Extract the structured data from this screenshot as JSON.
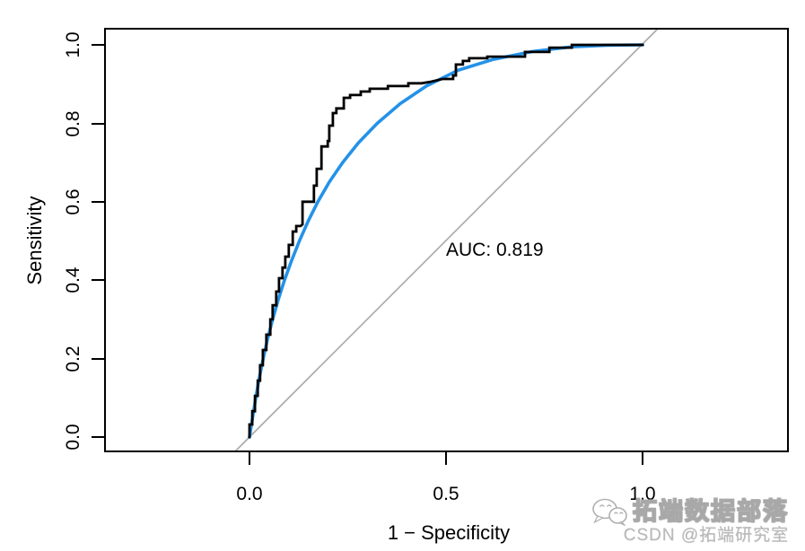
{
  "chart": {
    "ylabel": "Sensitivity",
    "xlabel": "1 − Specificity",
    "auc_text": "AUC: 0.819",
    "y_tick_labels": [
      "0.0",
      "0.2",
      "0.4",
      "0.6",
      "0.8",
      "1.0"
    ],
    "x_tick_labels": [
      "0.0",
      "0.5",
      "1.0"
    ]
  },
  "chart_data": {
    "type": "line",
    "title": "",
    "xlabel": "1 − Specificity",
    "ylabel": "Sensitivity",
    "xlim": [
      0,
      1
    ],
    "ylim": [
      0,
      1
    ],
    "x_ticks": [
      0,
      0.5,
      1
    ],
    "y_ticks": [
      0,
      0.2,
      0.4,
      0.6,
      0.8,
      1
    ],
    "grid": false,
    "legend": "none",
    "annotations": [
      {
        "text": "AUC: 0.819",
        "x": 0.5,
        "y": 0.48
      }
    ],
    "series": [
      {
        "name": "empirical ROC (stepped)",
        "style": "step",
        "color": "#000000",
        "line_width": 2.8,
        "points": [
          [
            0,
            0
          ],
          [
            0,
            0.032
          ],
          [
            0.007,
            0.032
          ],
          [
            0.007,
            0.066
          ],
          [
            0.014,
            0.066
          ],
          [
            0.014,
            0.105
          ],
          [
            0.021,
            0.105
          ],
          [
            0.021,
            0.144
          ],
          [
            0.027,
            0.144
          ],
          [
            0.027,
            0.183
          ],
          [
            0.034,
            0.183
          ],
          [
            0.034,
            0.222
          ],
          [
            0.043,
            0.222
          ],
          [
            0.043,
            0.261
          ],
          [
            0.053,
            0.261
          ],
          [
            0.053,
            0.3
          ],
          [
            0.059,
            0.3
          ],
          [
            0.059,
            0.336
          ],
          [
            0.068,
            0.336
          ],
          [
            0.068,
            0.371
          ],
          [
            0.075,
            0.371
          ],
          [
            0.075,
            0.405
          ],
          [
            0.084,
            0.405
          ],
          [
            0.084,
            0.432
          ],
          [
            0.091,
            0.432
          ],
          [
            0.091,
            0.46
          ],
          [
            0.1,
            0.46
          ],
          [
            0.1,
            0.49
          ],
          [
            0.11,
            0.49
          ],
          [
            0.11,
            0.524
          ],
          [
            0.119,
            0.524
          ],
          [
            0.119,
            0.538
          ],
          [
            0.13,
            0.538
          ],
          [
            0.135,
            0.542
          ],
          [
            0.135,
            0.6
          ],
          [
            0.164,
            0.6
          ],
          [
            0.164,
            0.641
          ],
          [
            0.171,
            0.641
          ],
          [
            0.171,
            0.684
          ],
          [
            0.183,
            0.684
          ],
          [
            0.183,
            0.741
          ],
          [
            0.199,
            0.741
          ],
          [
            0.199,
            0.755
          ],
          [
            0.203,
            0.755
          ],
          [
            0.203,
            0.794
          ],
          [
            0.212,
            0.794
          ],
          [
            0.212,
            0.826
          ],
          [
            0.221,
            0.826
          ],
          [
            0.221,
            0.838
          ],
          [
            0.24,
            0.838
          ],
          [
            0.24,
            0.865
          ],
          [
            0.256,
            0.865
          ],
          [
            0.256,
            0.872
          ],
          [
            0.283,
            0.872
          ],
          [
            0.283,
            0.881
          ],
          [
            0.306,
            0.881
          ],
          [
            0.306,
            0.888
          ],
          [
            0.352,
            0.888
          ],
          [
            0.352,
            0.895
          ],
          [
            0.404,
            0.895
          ],
          [
            0.404,
            0.902
          ],
          [
            0.438,
            0.902
          ],
          [
            0.461,
            0.906
          ],
          [
            0.491,
            0.913
          ],
          [
            0.518,
            0.913
          ],
          [
            0.518,
            0.922
          ],
          [
            0.525,
            0.922
          ],
          [
            0.525,
            0.95
          ],
          [
            0.543,
            0.95
          ],
          [
            0.543,
            0.959
          ],
          [
            0.559,
            0.959
          ],
          [
            0.559,
            0.966
          ],
          [
            0.605,
            0.966
          ],
          [
            0.605,
            0.97
          ],
          [
            0.701,
            0.97
          ],
          [
            0.701,
            0.982
          ],
          [
            0.763,
            0.982
          ],
          [
            0.763,
            0.993
          ],
          [
            0.82,
            0.993
          ],
          [
            0.82,
            1
          ],
          [
            1,
            1
          ]
        ]
      },
      {
        "name": "smoothed ROC",
        "style": "smooth",
        "color": "#2492e8",
        "line_width": 3.6,
        "points": [
          [
            0,
            0
          ],
          [
            0.008,
            0.05
          ],
          [
            0.016,
            0.1
          ],
          [
            0.025,
            0.15
          ],
          [
            0.035,
            0.2
          ],
          [
            0.046,
            0.25
          ],
          [
            0.059,
            0.3
          ],
          [
            0.073,
            0.35
          ],
          [
            0.089,
            0.4
          ],
          [
            0.107,
            0.45
          ],
          [
            0.127,
            0.5
          ],
          [
            0.149,
            0.55
          ],
          [
            0.174,
            0.6
          ],
          [
            0.203,
            0.65
          ],
          [
            0.237,
            0.7
          ],
          [
            0.277,
            0.75
          ],
          [
            0.325,
            0.8
          ],
          [
            0.383,
            0.85
          ],
          [
            0.45,
            0.895
          ],
          [
            0.53,
            0.935
          ],
          [
            0.62,
            0.963
          ],
          [
            0.72,
            0.983
          ],
          [
            0.82,
            0.995
          ],
          [
            0.91,
            0.999
          ],
          [
            1,
            1
          ]
        ]
      },
      {
        "name": "chance diagonal",
        "style": "straight",
        "color": "#a9a9a9",
        "line_width": 1.6,
        "points": [
          [
            0,
            0
          ],
          [
            1,
            1
          ]
        ]
      }
    ]
  },
  "watermark": {
    "brand_line": "拓端数据部落",
    "csdn_line": "CSDN @拓端研究室",
    "icon": "wechat-icon"
  }
}
